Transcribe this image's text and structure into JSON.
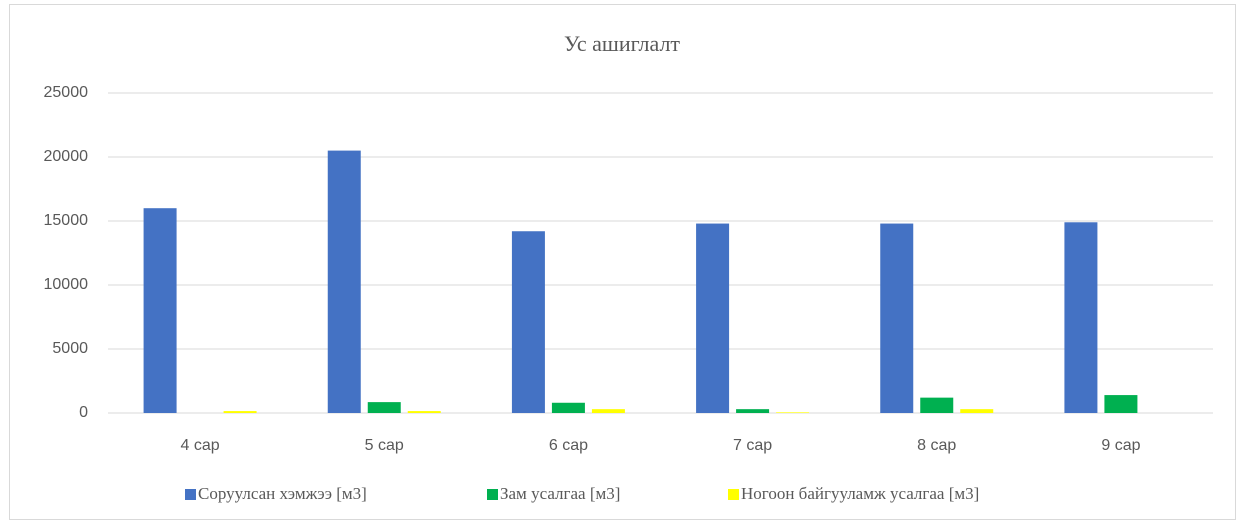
{
  "chart_data": {
    "type": "bar",
    "title": "Ус ашиглалт",
    "categories": [
      "4 сар",
      "5 сар",
      "6 сар",
      "7 сар",
      "8 сар",
      "9 сар"
    ],
    "series": [
      {
        "name": "Соруулсан хэмжээ [м3]",
        "color": "#4472c4",
        "values": [
          16000,
          20500,
          14200,
          14800,
          14800,
          14900
        ]
      },
      {
        "name": "Зам усалгаа [м3]",
        "color": "#00b050",
        "values": [
          0,
          850,
          800,
          300,
          1200,
          1400
        ]
      },
      {
        "name": "Ногоон байгууламж усалгаа [м3]",
        "color": "#ffff00",
        "values": [
          150,
          150,
          300,
          50,
          300,
          0
        ]
      }
    ],
    "ylim": [
      0,
      25000
    ],
    "yticks": [
      0,
      5000,
      10000,
      15000,
      20000,
      25000
    ],
    "grid": true,
    "legend": "bottom"
  }
}
